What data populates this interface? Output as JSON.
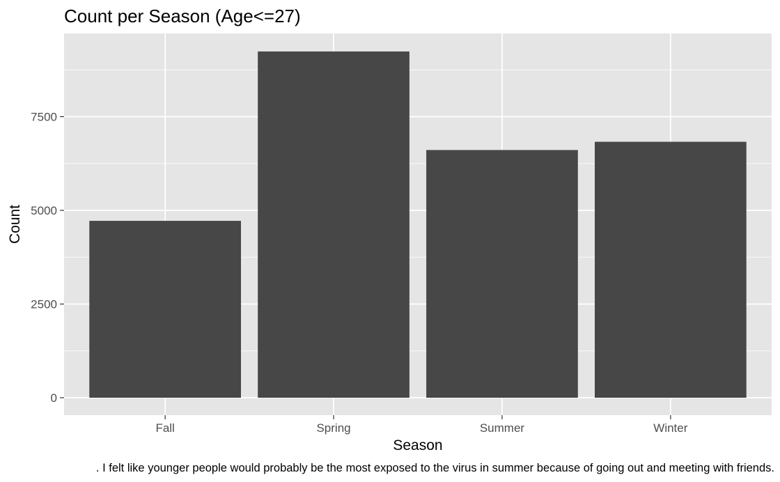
{
  "chart_data": {
    "type": "bar",
    "title": "Count per Season (Age<=27)",
    "xlabel": "Season",
    "ylabel": "Count",
    "categories": [
      "Fall",
      "Spring",
      "Summer",
      "Winter"
    ],
    "values": [
      4720,
      9240,
      6610,
      6830
    ],
    "ylim": [
      0,
      9700
    ],
    "yticks": [
      0,
      2500,
      5000,
      7500
    ],
    "grid": true,
    "colors": {
      "panel": "#e5e5e5",
      "grid_major": "#ffffff",
      "bar": "#474747",
      "tick_text": "#4d4d4d",
      "tick_mark": "#333333",
      "text": "#000000"
    }
  },
  "caption": ". I felt like younger people would probably be the most exposed to the virus in summer because of going out and meeting with friends."
}
